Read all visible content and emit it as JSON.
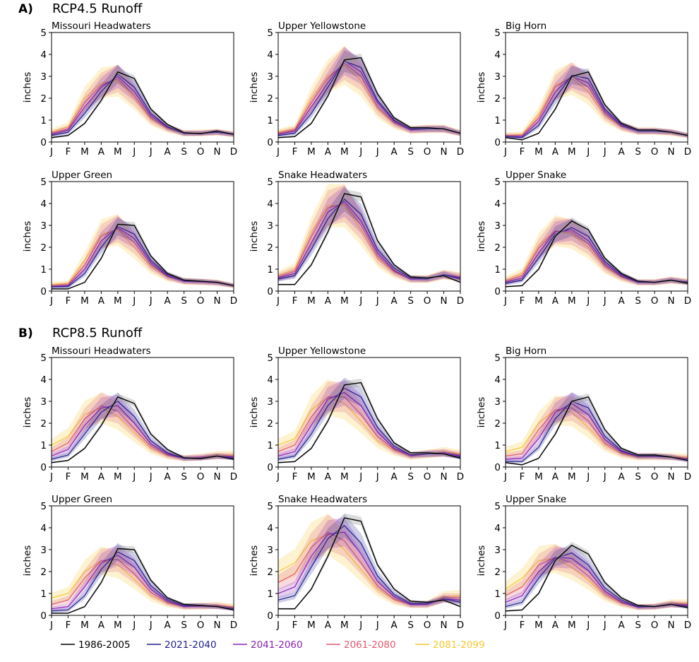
{
  "figure": {
    "panels": [
      {
        "letter": "A)",
        "title": "RCP4.5 Runoff"
      },
      {
        "letter": "B)",
        "title": "RCP8.5 Runoff"
      }
    ]
  },
  "legend": [
    {
      "label": "1986-2005",
      "color": "#000000"
    },
    {
      "label": "2021-2040",
      "color": "#1f1f8f"
    },
    {
      "label": "2041-2060",
      "color": "#8b22b5"
    },
    {
      "label": "2061-2080",
      "color": "#e05a6e"
    },
    {
      "label": "2081-2099",
      "color": "#f7c82d"
    }
  ],
  "chart_data": {
    "type": "line",
    "x": [
      "J",
      "F",
      "M",
      "A",
      "M",
      "J",
      "J",
      "A",
      "S",
      "O",
      "N",
      "D"
    ],
    "ylabel": "inches",
    "ylim": [
      0,
      5
    ],
    "yticks": [
      0,
      1,
      2,
      3,
      4,
      5
    ],
    "series_names": [
      "1986-2005",
      "2021-2040",
      "2041-2060",
      "2061-2080",
      "2081-2099"
    ],
    "panels": [
      {
        "scenario": "RCP4.5 Runoff",
        "subplots": [
          {
            "title": "Missouri Headwaters",
            "series": [
              [
                0.2,
                0.3,
                0.85,
                1.9,
                3.2,
                2.9,
                1.5,
                0.8,
                0.42,
                0.38,
                0.5,
                0.35
              ],
              [
                0.3,
                0.45,
                1.3,
                2.3,
                3.1,
                2.5,
                1.3,
                0.7,
                0.4,
                0.4,
                0.45,
                0.35
              ],
              [
                0.35,
                0.55,
                1.6,
                2.5,
                3.0,
                2.3,
                1.2,
                0.68,
                0.4,
                0.4,
                0.45,
                0.35
              ],
              [
                0.4,
                0.6,
                1.8,
                2.6,
                2.9,
                2.1,
                1.1,
                0.65,
                0.4,
                0.4,
                0.45,
                0.35
              ],
              [
                0.45,
                0.7,
                2.0,
                2.7,
                2.8,
                2.0,
                1.05,
                0.62,
                0.4,
                0.42,
                0.45,
                0.35
              ]
            ]
          },
          {
            "title": "Upper Yellowstone",
            "series": [
              [
                0.2,
                0.25,
                0.85,
                2.1,
                3.75,
                3.85,
                2.2,
                1.1,
                0.65,
                0.65,
                0.6,
                0.4
              ],
              [
                0.3,
                0.4,
                1.3,
                2.5,
                3.7,
                3.4,
                1.9,
                1.0,
                0.6,
                0.6,
                0.6,
                0.4
              ],
              [
                0.35,
                0.5,
                1.6,
                2.7,
                3.7,
                3.2,
                1.8,
                0.95,
                0.55,
                0.6,
                0.6,
                0.4
              ],
              [
                0.4,
                0.55,
                1.8,
                2.9,
                3.6,
                3.0,
                1.6,
                0.9,
                0.55,
                0.6,
                0.6,
                0.4
              ],
              [
                0.45,
                0.6,
                2.0,
                3.0,
                3.5,
                2.8,
                1.5,
                0.85,
                0.55,
                0.6,
                0.6,
                0.4
              ]
            ]
          },
          {
            "title": "Big Horn",
            "series": [
              [
                0.2,
                0.1,
                0.4,
                1.5,
                3.0,
                3.2,
                1.7,
                0.85,
                0.55,
                0.55,
                0.45,
                0.3
              ],
              [
                0.25,
                0.2,
                0.75,
                2.0,
                3.05,
                2.9,
                1.5,
                0.8,
                0.5,
                0.5,
                0.45,
                0.3
              ],
              [
                0.25,
                0.25,
                0.95,
                2.3,
                3.0,
                2.7,
                1.4,
                0.75,
                0.5,
                0.5,
                0.45,
                0.3
              ],
              [
                0.3,
                0.3,
                1.1,
                2.5,
                3.0,
                2.5,
                1.3,
                0.72,
                0.5,
                0.5,
                0.45,
                0.3
              ],
              [
                0.3,
                0.35,
                1.25,
                2.6,
                2.9,
                2.3,
                1.2,
                0.7,
                0.5,
                0.5,
                0.42,
                0.3
              ]
            ]
          },
          {
            "title": "Upper Green",
            "series": [
              [
                0.1,
                0.1,
                0.4,
                1.5,
                3.05,
                3.0,
                1.6,
                0.8,
                0.5,
                0.45,
                0.4,
                0.25
              ],
              [
                0.2,
                0.2,
                0.8,
                2.0,
                2.95,
                2.6,
                1.4,
                0.75,
                0.48,
                0.45,
                0.4,
                0.25
              ],
              [
                0.2,
                0.25,
                1.0,
                2.3,
                2.9,
                2.4,
                1.3,
                0.7,
                0.45,
                0.42,
                0.38,
                0.25
              ],
              [
                0.25,
                0.3,
                1.2,
                2.5,
                2.85,
                2.2,
                1.2,
                0.68,
                0.45,
                0.42,
                0.38,
                0.25
              ],
              [
                0.3,
                0.35,
                1.4,
                2.6,
                2.8,
                2.0,
                1.1,
                0.65,
                0.45,
                0.42,
                0.38,
                0.25
              ]
            ]
          },
          {
            "title": "Snake Headwaters",
            "series": [
              [
                0.3,
                0.3,
                1.2,
                2.7,
                4.45,
                4.3,
                2.3,
                1.2,
                0.65,
                0.6,
                0.7,
                0.4
              ],
              [
                0.55,
                0.7,
                1.9,
                3.3,
                4.2,
                3.5,
                1.9,
                1.05,
                0.6,
                0.55,
                0.75,
                0.55
              ],
              [
                0.6,
                0.8,
                2.2,
                3.6,
                4.1,
                3.2,
                1.75,
                0.95,
                0.55,
                0.55,
                0.75,
                0.6
              ],
              [
                0.65,
                0.9,
                2.5,
                3.8,
                4.0,
                3.0,
                1.6,
                0.9,
                0.55,
                0.55,
                0.75,
                0.65
              ],
              [
                0.7,
                1.0,
                2.7,
                3.9,
                3.9,
                2.8,
                1.5,
                0.85,
                0.55,
                0.55,
                0.75,
                0.65
              ]
            ]
          },
          {
            "title": "Upper Snake",
            "series": [
              [
                0.2,
                0.25,
                1.0,
                2.5,
                3.2,
                2.8,
                1.5,
                0.8,
                0.45,
                0.4,
                0.5,
                0.35
              ],
              [
                0.35,
                0.5,
                1.5,
                2.6,
                2.9,
                2.5,
                1.35,
                0.75,
                0.42,
                0.4,
                0.5,
                0.4
              ],
              [
                0.4,
                0.6,
                1.75,
                2.7,
                2.8,
                2.3,
                1.25,
                0.7,
                0.4,
                0.4,
                0.5,
                0.4
              ],
              [
                0.45,
                0.7,
                1.95,
                2.75,
                2.7,
                2.15,
                1.15,
                0.66,
                0.4,
                0.4,
                0.5,
                0.42
              ],
              [
                0.5,
                0.8,
                2.1,
                2.75,
                2.6,
                2.0,
                1.1,
                0.62,
                0.4,
                0.4,
                0.5,
                0.42
              ]
            ]
          }
        ]
      },
      {
        "scenario": "RCP8.5 Runoff",
        "subplots": [
          {
            "title": "Missouri Headwaters",
            "series": [
              [
                0.2,
                0.3,
                0.85,
                1.9,
                3.2,
                2.9,
                1.5,
                0.8,
                0.42,
                0.38,
                0.5,
                0.35
              ],
              [
                0.35,
                0.55,
                1.5,
                2.5,
                3.0,
                2.3,
                1.2,
                0.65,
                0.4,
                0.4,
                0.5,
                0.4
              ],
              [
                0.5,
                0.8,
                1.9,
                2.7,
                2.8,
                2.0,
                1.05,
                0.6,
                0.4,
                0.42,
                0.5,
                0.45
              ],
              [
                0.7,
                1.1,
                2.2,
                2.8,
                2.55,
                1.75,
                0.95,
                0.55,
                0.4,
                0.45,
                0.5,
                0.5
              ],
              [
                1.0,
                1.4,
                2.4,
                2.7,
                2.3,
                1.55,
                0.85,
                0.52,
                0.4,
                0.45,
                0.55,
                0.55
              ]
            ]
          },
          {
            "title": "Upper Yellowstone",
            "series": [
              [
                0.2,
                0.25,
                0.85,
                2.1,
                3.75,
                3.85,
                2.2,
                1.1,
                0.65,
                0.65,
                0.6,
                0.4
              ],
              [
                0.35,
                0.5,
                1.5,
                2.8,
                3.6,
                3.2,
                1.8,
                0.95,
                0.55,
                0.6,
                0.6,
                0.45
              ],
              [
                0.5,
                0.7,
                1.9,
                3.1,
                3.4,
                2.8,
                1.6,
                0.85,
                0.55,
                0.6,
                0.65,
                0.5
              ],
              [
                0.7,
                1.0,
                2.3,
                3.2,
                3.2,
                2.4,
                1.4,
                0.8,
                0.5,
                0.6,
                0.65,
                0.55
              ],
              [
                1.0,
                1.3,
                2.6,
                3.2,
                2.9,
                2.1,
                1.2,
                0.75,
                0.5,
                0.6,
                0.7,
                0.6
              ]
            ]
          },
          {
            "title": "Big Horn",
            "series": [
              [
                0.2,
                0.1,
                0.4,
                1.5,
                3.0,
                3.2,
                1.7,
                0.85,
                0.55,
                0.55,
                0.45,
                0.3
              ],
              [
                0.25,
                0.25,
                0.9,
                2.2,
                3.0,
                2.7,
                1.4,
                0.75,
                0.5,
                0.5,
                0.45,
                0.3
              ],
              [
                0.35,
                0.4,
                1.3,
                2.5,
                2.9,
                2.4,
                1.25,
                0.7,
                0.5,
                0.5,
                0.45,
                0.35
              ],
              [
                0.5,
                0.6,
                1.7,
                2.6,
                2.7,
                2.1,
                1.1,
                0.65,
                0.48,
                0.48,
                0.45,
                0.4
              ],
              [
                0.7,
                0.9,
                2.0,
                2.6,
                2.5,
                1.8,
                1.0,
                0.6,
                0.45,
                0.48,
                0.48,
                0.45
              ]
            ]
          },
          {
            "title": "Upper Green",
            "series": [
              [
                0.1,
                0.1,
                0.4,
                1.5,
                3.05,
                3.0,
                1.6,
                0.8,
                0.5,
                0.45,
                0.4,
                0.25
              ],
              [
                0.2,
                0.25,
                0.9,
                2.1,
                2.9,
                2.5,
                1.35,
                0.72,
                0.45,
                0.45,
                0.4,
                0.3
              ],
              [
                0.3,
                0.4,
                1.3,
                2.4,
                2.75,
                2.2,
                1.2,
                0.65,
                0.42,
                0.42,
                0.4,
                0.3
              ],
              [
                0.5,
                0.7,
                1.7,
                2.5,
                2.55,
                1.9,
                1.05,
                0.6,
                0.4,
                0.42,
                0.45,
                0.35
              ],
              [
                0.8,
                1.0,
                2.0,
                2.5,
                2.3,
                1.65,
                0.9,
                0.55,
                0.4,
                0.42,
                0.45,
                0.4
              ]
            ]
          },
          {
            "title": "Snake Headwaters",
            "series": [
              [
                0.3,
                0.3,
                1.2,
                2.7,
                4.45,
                4.3,
                2.3,
                1.2,
                0.65,
                0.6,
                0.7,
                0.4
              ],
              [
                0.7,
                0.9,
                2.2,
                3.5,
                4.1,
                3.3,
                1.8,
                0.95,
                0.55,
                0.55,
                0.75,
                0.6
              ],
              [
                1.0,
                1.3,
                2.7,
                3.7,
                3.8,
                2.8,
                1.55,
                0.85,
                0.5,
                0.5,
                0.75,
                0.7
              ],
              [
                1.5,
                1.9,
                3.1,
                3.8,
                3.4,
                2.4,
                1.35,
                0.75,
                0.5,
                0.5,
                0.8,
                0.8
              ],
              [
                2.0,
                2.4,
                3.4,
                3.7,
                3.0,
                2.1,
                1.2,
                0.7,
                0.5,
                0.5,
                0.85,
                0.9
              ]
            ]
          },
          {
            "title": "Upper Snake",
            "series": [
              [
                0.2,
                0.25,
                1.0,
                2.5,
                3.2,
                2.8,
                1.5,
                0.8,
                0.45,
                0.4,
                0.5,
                0.35
              ],
              [
                0.4,
                0.6,
                1.7,
                2.6,
                2.85,
                2.3,
                1.25,
                0.7,
                0.4,
                0.4,
                0.5,
                0.4
              ],
              [
                0.6,
                0.9,
                2.0,
                2.65,
                2.6,
                2.05,
                1.1,
                0.62,
                0.38,
                0.4,
                0.5,
                0.45
              ],
              [
                0.9,
                1.3,
                2.3,
                2.65,
                2.4,
                1.8,
                1.0,
                0.58,
                0.38,
                0.4,
                0.52,
                0.5
              ],
              [
                1.2,
                1.7,
                2.5,
                2.6,
                2.2,
                1.6,
                0.9,
                0.55,
                0.38,
                0.4,
                0.55,
                0.55
              ]
            ]
          }
        ]
      }
    ]
  }
}
